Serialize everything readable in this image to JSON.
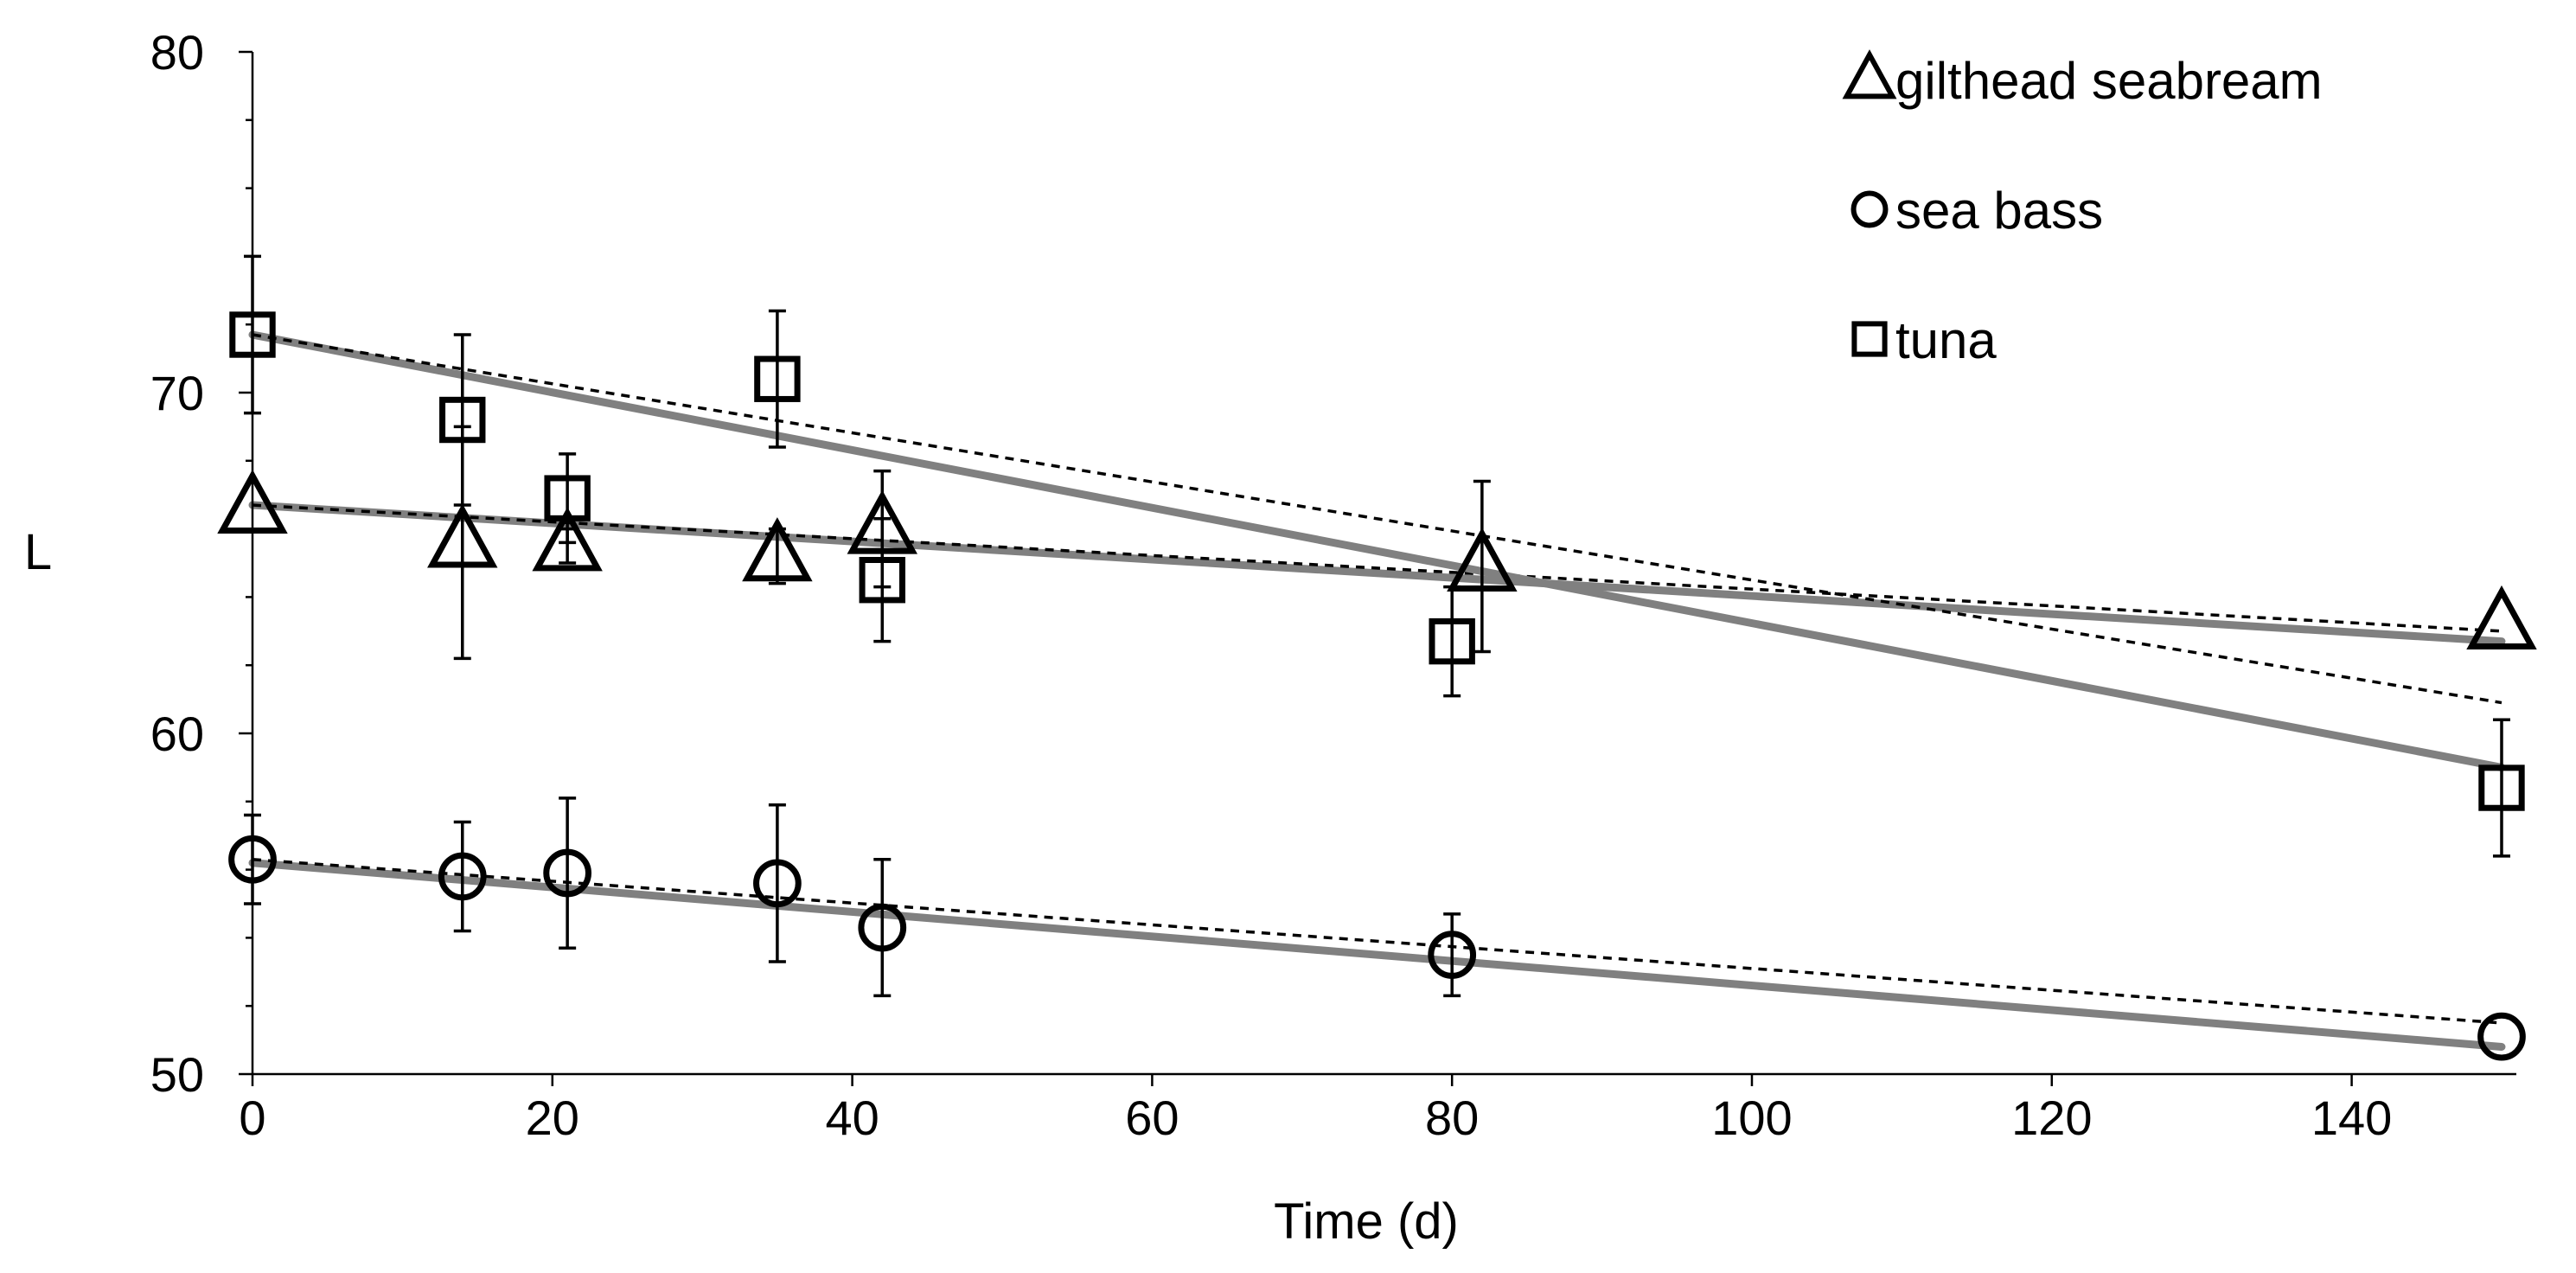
{
  "chart_data": {
    "type": "scatter",
    "xlabel": "Time (d)",
    "ylabel": "L",
    "xlim": [
      0,
      150
    ],
    "ylim": [
      50,
      80
    ],
    "x_ticks": [
      0,
      20,
      40,
      60,
      80,
      100,
      120,
      140
    ],
    "y_ticks": [
      50,
      60,
      70,
      80
    ],
    "grid": false,
    "legend_position": "top-right",
    "series": [
      {
        "name": "gilthead seabream",
        "marker": "triangle",
        "x": [
          0,
          14,
          21,
          35,
          42,
          82,
          150
        ],
        "y": [
          66.6,
          65.6,
          65.5,
          65.2,
          66.0,
          64.9,
          63.2
        ],
        "err": [
          0,
          3.4,
          0.5,
          0.8,
          1.7,
          2.5,
          0
        ],
        "fit_solid": [
          [
            0,
            66.7
          ],
          [
            150,
            62.7
          ]
        ],
        "fit_dashed": [
          [
            0,
            66.7
          ],
          [
            150,
            63.0
          ]
        ]
      },
      {
        "name": "sea bass",
        "marker": "circle",
        "x": [
          0,
          14,
          21,
          35,
          42,
          80,
          150
        ],
        "y": [
          56.3,
          55.8,
          55.9,
          55.6,
          54.3,
          53.5,
          51.1
        ],
        "err": [
          1.3,
          1.6,
          2.2,
          2.3,
          2.0,
          1.2,
          0
        ],
        "fit_solid": [
          [
            0,
            56.2
          ],
          [
            150,
            50.8
          ]
        ],
        "fit_dashed": [
          [
            0,
            56.3
          ],
          [
            150,
            51.5
          ]
        ]
      },
      {
        "name": "tuna",
        "marker": "square",
        "x": [
          0,
          14,
          21,
          35,
          42,
          80,
          150
        ],
        "y": [
          71.7,
          69.2,
          66.9,
          70.4,
          64.5,
          62.7,
          58.4
        ],
        "err": [
          2.3,
          2.5,
          1.3,
          2.0,
          1.8,
          1.6,
          2.0
        ],
        "fit_solid": [
          [
            0,
            71.7
          ],
          [
            150,
            59.0
          ]
        ],
        "fit_dashed": [
          [
            0,
            71.7
          ],
          [
            150,
            60.9
          ]
        ]
      }
    ]
  }
}
